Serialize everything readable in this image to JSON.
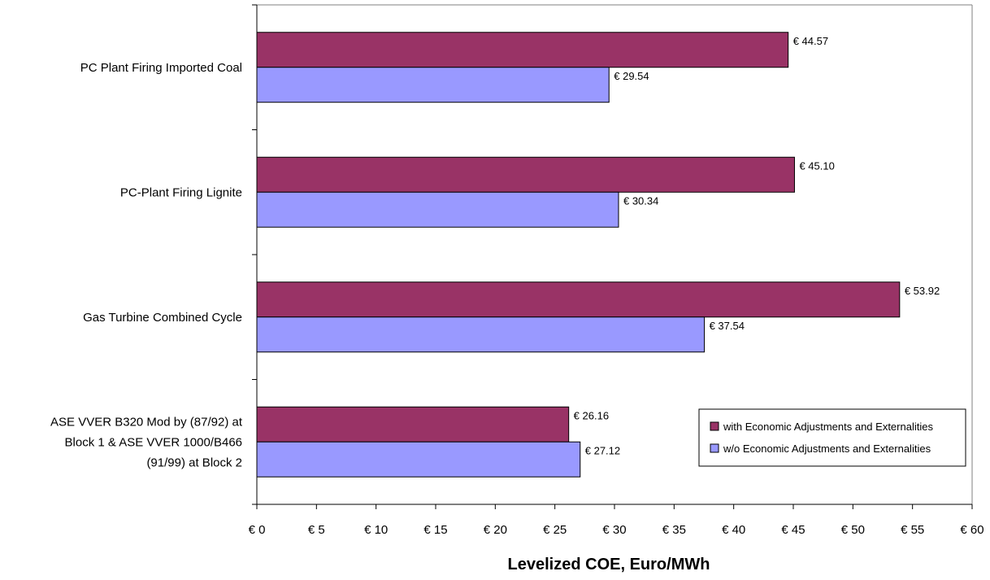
{
  "chart_data": {
    "type": "bar",
    "orientation": "horizontal",
    "categories": [
      [
        "PC Plant Firing Imported Coal"
      ],
      [
        "PC-Plant Firing Lignite"
      ],
      [
        "Gas Turbine Combined Cycle"
      ],
      [
        "ASE VVER B320 Mod by (87/92) at",
        "Block 1 & ASE VVER 1000/B466",
        "(91/99) at Block 2"
      ]
    ],
    "series": [
      {
        "name": "with Economic Adjustments and Externalities",
        "color": "#993366",
        "values": [
          44.57,
          45.1,
          53.92,
          26.16
        ],
        "labels": [
          "€ 44.57",
          "€ 45.10",
          "€ 53.92",
          "€ 26.16"
        ]
      },
      {
        "name": "w/o Economic Adjustments and Externalities",
        "color": "#9999FF",
        "values": [
          29.54,
          30.34,
          37.54,
          27.12
        ],
        "labels": [
          "€ 29.54",
          "€ 30.34",
          "€ 37.54",
          "€ 27.12"
        ]
      }
    ],
    "xlim": [
      0,
      60
    ],
    "xticks": [
      0,
      5,
      10,
      15,
      20,
      25,
      30,
      35,
      40,
      45,
      50,
      55,
      60
    ],
    "xtick_labels": [
      "€ 0",
      "€ 5",
      "€ 10",
      "€ 15",
      "€ 20",
      "€ 25",
      "€ 30",
      "€ 35",
      "€ 40",
      "€ 45",
      "€ 50",
      "€ 55",
      "€ 60"
    ],
    "xlabel": "Levelized COE, Euro/MWh",
    "ylabel": "",
    "title": "",
    "grid": false,
    "legend_position": "bottom-right"
  }
}
